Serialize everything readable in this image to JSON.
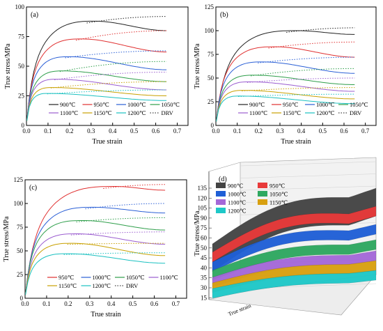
{
  "chart_data": [
    {
      "id": "a",
      "type": "line",
      "panel_label": "(a)",
      "xlabel": "True strain",
      "ylabel": "True stress/MPa",
      "xlim": [
        0,
        0.75
      ],
      "ylim": [
        0,
        100
      ],
      "xticks": [
        "0.0",
        "0.1",
        "0.2",
        "0.3",
        "0.4",
        "0.5",
        "0.6",
        "0.7"
      ],
      "yticks": [
        "0",
        "25",
        "50",
        "75",
        "100"
      ],
      "legend_position": "bottom",
      "series": [
        {
          "name": "900℃",
          "color": "#222222",
          "peak": [
            0.32,
            88
          ],
          "end": 80
        },
        {
          "name": "950℃",
          "color": "#e03030",
          "peak": [
            0.26,
            73
          ],
          "end": 62
        },
        {
          "name": "1000℃",
          "color": "#2a5fd6",
          "peak": [
            0.2,
            58
          ],
          "end": 47
        },
        {
          "name": "1050℃",
          "color": "#2e9e4a",
          "peak": [
            0.17,
            46
          ],
          "end": 37
        },
        {
          "name": "1100℃",
          "color": "#9a5ccf",
          "peak": [
            0.14,
            39
          ],
          "end": 30
        },
        {
          "name": "1150℃",
          "color": "#c8a000",
          "peak": [
            0.12,
            32
          ],
          "end": 25
        },
        {
          "name": "1200℃",
          "color": "#19c0c0",
          "peak": [
            0.1,
            27
          ],
          "end": 21
        },
        {
          "name": "DRV",
          "color": "#444444",
          "dotted": true
        }
      ],
      "drv_end": [
        92,
        80,
        63,
        54,
        45,
        37,
        30
      ]
    },
    {
      "id": "b",
      "type": "line",
      "panel_label": "(b)",
      "xlabel": "True strain",
      "ylabel": "True stress/MPa",
      "xlim": [
        0,
        0.75
      ],
      "ylim": [
        0,
        125
      ],
      "xticks": [
        "0.0",
        "0.1",
        "0.2",
        "0.3",
        "0.4",
        "0.5",
        "0.6",
        "0.7"
      ],
      "yticks": [
        "0",
        "25",
        "50",
        "75",
        "100",
        "125"
      ],
      "legend_position": "bottom",
      "series": [
        {
          "name": "900℃",
          "color": "#222222",
          "peak": [
            0.38,
            100
          ],
          "end": 96
        },
        {
          "name": "950℃",
          "color": "#e03030",
          "peak": [
            0.28,
            83
          ],
          "end": 72
        },
        {
          "name": "1000℃",
          "color": "#2a5fd6",
          "peak": [
            0.22,
            67
          ],
          "end": 55
        },
        {
          "name": "1050℃",
          "color": "#2e9e4a",
          "peak": [
            0.18,
            53
          ],
          "end": 43
        },
        {
          "name": "1100℃",
          "color": "#9a5ccf",
          "peak": [
            0.16,
            46
          ],
          "end": 36
        },
        {
          "name": "1150℃",
          "color": "#c8a000",
          "peak": [
            0.13,
            37
          ],
          "end": 28
        },
        {
          "name": "1200℃",
          "color": "#19c0c0",
          "peak": [
            0.11,
            31
          ],
          "end": 23
        },
        {
          "name": "DRV",
          "color": "#444444",
          "dotted": true
        }
      ],
      "drv_end": [
        103,
        88,
        72,
        60,
        50,
        40,
        33
      ]
    },
    {
      "id": "c",
      "type": "line",
      "panel_label": "(c)",
      "xlabel": "True strain",
      "ylabel": "True stress/MPa",
      "xlim": [
        0,
        0.75
      ],
      "ylim": [
        0,
        125
      ],
      "xticks": [
        "0.0",
        "0.1",
        "0.2",
        "0.3",
        "0.4",
        "0.5",
        "0.6",
        "0.7"
      ],
      "yticks": [
        "0",
        "25",
        "50",
        "75",
        "100",
        "125"
      ],
      "legend_position": "bottom",
      "series": [
        {
          "name": "950℃",
          "color": "#e03030",
          "peak": [
            0.42,
            118
          ],
          "end": 114
        },
        {
          "name": "1000℃",
          "color": "#2a5fd6",
          "peak": [
            0.32,
            96
          ],
          "end": 90
        },
        {
          "name": "1050℃",
          "color": "#2e9e4a",
          "peak": [
            0.27,
            82
          ],
          "end": 72
        },
        {
          "name": "1100℃",
          "color": "#9a5ccf",
          "peak": [
            0.24,
            68
          ],
          "end": 57
        },
        {
          "name": "1150℃",
          "color": "#c8a000",
          "peak": [
            0.22,
            58
          ],
          "end": 45
        },
        {
          "name": "1200℃",
          "color": "#19c0c0",
          "peak": [
            0.2,
            47
          ],
          "end": 37
        },
        {
          "name": "DRV",
          "color": "#444444",
          "dotted": true
        }
      ],
      "drv_end": [
        120,
        100,
        85,
        70,
        58,
        48
      ]
    },
    {
      "id": "d",
      "type": "surface3d",
      "panel_label": "(d)",
      "zlabel": "True stress/MPa",
      "xlabel": "True strain",
      "zticks": [
        "15",
        "30",
        "35",
        "40",
        "45",
        "50",
        "60",
        "75",
        "90",
        "105",
        "120",
        "135"
      ],
      "series": [
        {
          "name": "900℃",
          "color": "#444444"
        },
        {
          "name": "950℃",
          "color": "#e83a3a"
        },
        {
          "name": "1000℃",
          "color": "#1f5fd6"
        },
        {
          "name": "1050℃",
          "color": "#2ea860"
        },
        {
          "name": "1100℃",
          "color": "#a468d8"
        },
        {
          "name": "1150℃",
          "color": "#d8a010"
        },
        {
          "name": "1200℃",
          "color": "#1ec8c8"
        }
      ]
    }
  ]
}
